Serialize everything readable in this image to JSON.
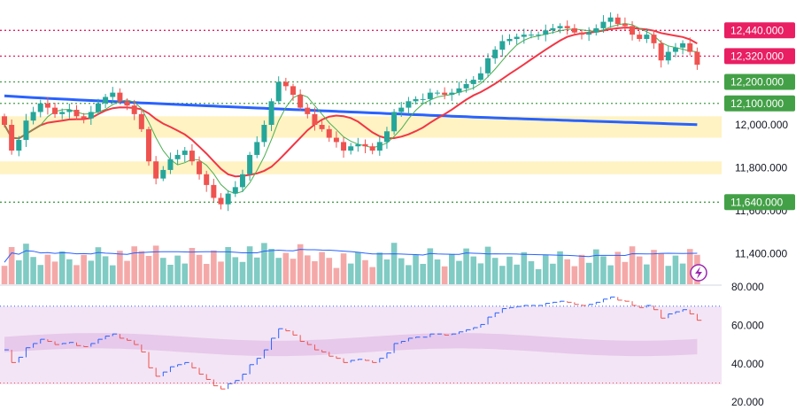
{
  "colors": {
    "up": "#26a69a",
    "down": "#ef5350",
    "upVol": "#80cbc4",
    "downVol": "#f4a9a8",
    "ma_long": "#2962ff",
    "ma_mid": "#f23645",
    "ma_short": "#4caf50",
    "resist": "#e91e63",
    "support": "#43a047",
    "zone": "#fff3c4",
    "rsi_bg": "#f3e5f5",
    "rsi_line": "#e91e63",
    "vol_ma": "#2962ff",
    "indicator_band": "#e1bee7"
  },
  "chart_data": {
    "type": "candlestick",
    "price_axis_labels": [
      "12,000.000",
      "11,800.000",
      "11,600.000",
      "11,400.000"
    ],
    "rsi_axis_labels": [
      "80.000",
      "60.000",
      "40.000",
      "20.000"
    ],
    "rsi_axis_values": [
      80,
      60,
      40,
      20
    ],
    "levels": [
      {
        "label": "12,440.000",
        "value": 12440,
        "kind": "resist"
      },
      {
        "label": "12,320.000",
        "value": 12320,
        "kind": "resist"
      },
      {
        "label": "12,200.000",
        "value": 12200,
        "kind": "support"
      },
      {
        "label": "12,100.000",
        "value": 12100,
        "kind": "support"
      },
      {
        "label": "11,640.000",
        "value": 11640,
        "kind": "support"
      }
    ],
    "zones": [
      [
        11940,
        12040
      ],
      [
        11770,
        11830
      ]
    ],
    "closes": [
      12000,
      11880,
      11930,
      12020,
      12060,
      12100,
      12080,
      12050,
      12060,
      12070,
      12040,
      12030,
      12060,
      12100,
      12130,
      12150,
      12110,
      12090,
      12050,
      11980,
      11830,
      11750,
      11790,
      11840,
      11860,
      11880,
      11830,
      11770,
      11720,
      11660,
      11630,
      11680,
      11710,
      11770,
      11860,
      11920,
      12000,
      12110,
      12200,
      12180,
      12140,
      12080,
      12050,
      12000,
      11980,
      11940,
      11920,
      11880,
      11900,
      11910,
      11900,
      11880,
      11920,
      11970,
      12060,
      12080,
      12110,
      12120,
      12120,
      12150,
      12150,
      12140,
      12150,
      12170,
      12190,
      12210,
      12240,
      12310,
      12350,
      12390,
      12400,
      12410,
      12420,
      12420,
      12420,
      12440,
      12450,
      12460,
      12450,
      12430,
      12420,
      12430,
      12450,
      12480,
      12500,
      12470,
      12460,
      12420,
      12400,
      12420,
      12380,
      12300,
      12340,
      12360,
      12380,
      12340,
      12280
    ]
  },
  "indicator": {
    "name": "purple lightning icon"
  }
}
